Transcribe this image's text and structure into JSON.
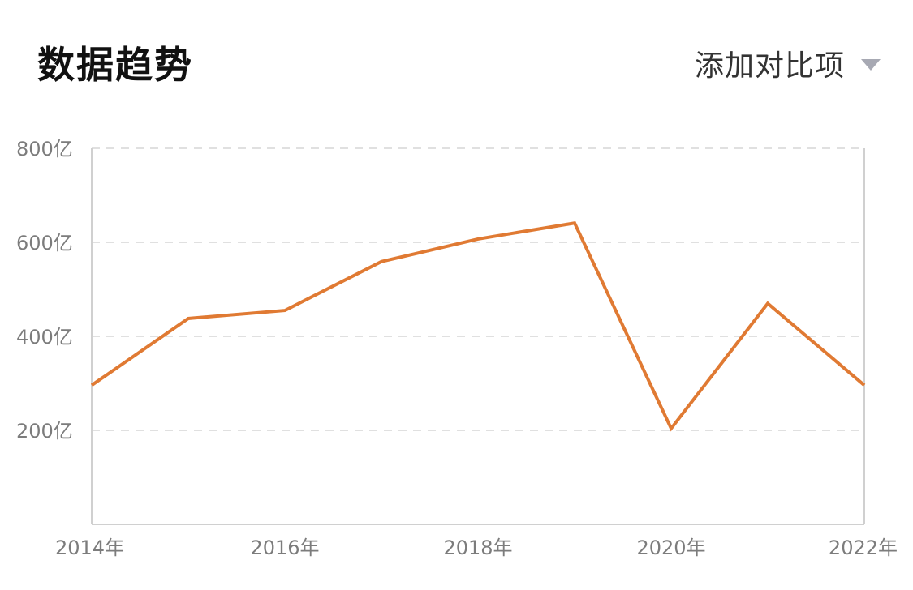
{
  "header": {
    "title": "数据趋势",
    "compare_label": "添加对比项",
    "compare_icon": "caret-down-icon"
  },
  "colors": {
    "line": "#e07a33",
    "grid": "#d6d6d6",
    "axis": "#d0d0d0",
    "caret": "#a7a9b3"
  },
  "chart_data": {
    "type": "line",
    "title": "",
    "xlabel": "",
    "ylabel": "",
    "x": [
      2014,
      2015,
      2016,
      2017,
      2018,
      2019,
      2020,
      2021,
      2022
    ],
    "series": [
      {
        "values": [
          296,
          438,
          455,
          559,
          607,
          641,
          204,
          470,
          296
        ]
      }
    ],
    "ylim": [
      0,
      800
    ],
    "xlim": [
      2014,
      2022
    ],
    "yticks": [
      {
        "value": 200,
        "label": "200亿"
      },
      {
        "value": 400,
        "label": "400亿"
      },
      {
        "value": 600,
        "label": "600亿"
      },
      {
        "value": 800,
        "label": "800亿"
      }
    ],
    "xticks": [
      {
        "value": 2014,
        "label": "2014年"
      },
      {
        "value": 2016,
        "label": "2016年"
      },
      {
        "value": 2018,
        "label": "2018年"
      },
      {
        "value": 2020,
        "label": "2020年"
      },
      {
        "value": 2022,
        "label": "2022年"
      }
    ],
    "grid": "dashed horizontal",
    "legend": "none"
  }
}
